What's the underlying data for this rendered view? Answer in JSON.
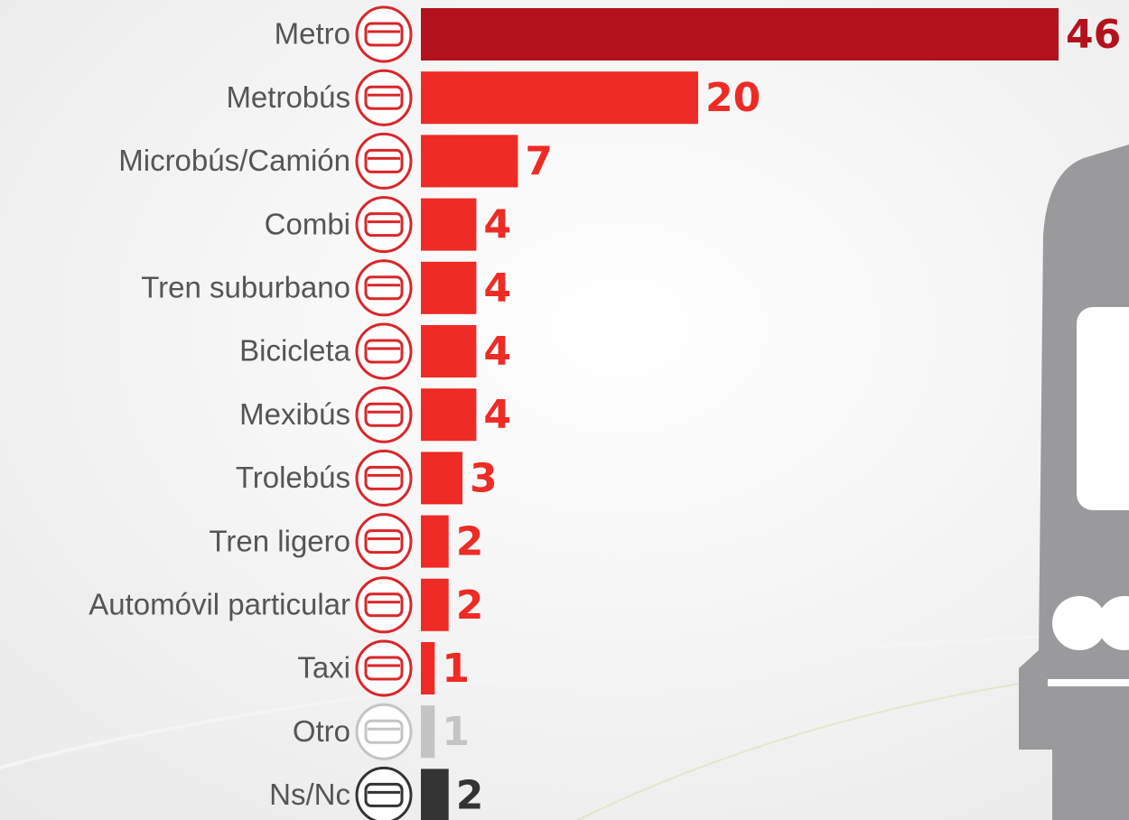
{
  "chart_data": {
    "type": "bar",
    "orientation": "horizontal",
    "categories": [
      "Metro",
      "Metrobús",
      "Microbús/Camión",
      "Combi",
      "Tren suburbano",
      "Bicicleta",
      "Mexibús",
      "Trolebús",
      "Tren ligero",
      "Automóvil particular",
      "Taxi",
      "Otro",
      "Ns/Nc"
    ],
    "values": [
      46,
      20,
      7,
      4,
      4,
      4,
      4,
      3,
      2,
      2,
      1,
      1,
      2
    ],
    "colors": [
      "#b3121d",
      "#ee2b24",
      "#ee2b24",
      "#ee2b24",
      "#ee2b24",
      "#ee2b24",
      "#ee2b24",
      "#ee2b24",
      "#ee2b24",
      "#ee2b24",
      "#ee2b24",
      "#c4c4c4",
      "#333333"
    ]
  }
}
